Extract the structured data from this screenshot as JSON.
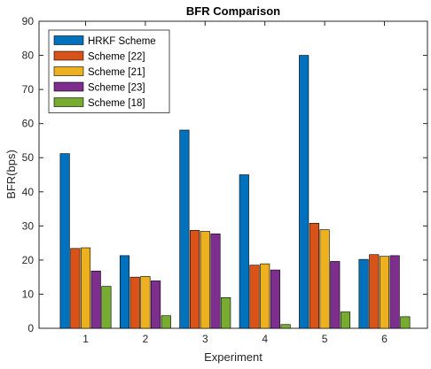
{
  "chart_data": {
    "type": "bar",
    "title": "BFR Comparison",
    "xlabel": "Experiment",
    "ylabel": "BFR(bps)",
    "categories": [
      "1",
      "2",
      "3",
      "4",
      "5",
      "6"
    ],
    "ylim": [
      0,
      90
    ],
    "yticks": [
      0,
      10,
      20,
      30,
      40,
      50,
      60,
      70,
      80,
      90
    ],
    "grid": false,
    "legend_position": "top-left",
    "series": [
      {
        "name": "HRKF Scheme",
        "color": "#0072BD",
        "values": [
          51.2,
          21.3,
          58.1,
          45.0,
          80.0,
          20.2
        ]
      },
      {
        "name": "Scheme [22]",
        "color": "#D95319",
        "values": [
          23.4,
          15.0,
          28.7,
          18.5,
          30.8,
          21.6
        ]
      },
      {
        "name": "Scheme [21]",
        "color": "#EDB120",
        "values": [
          23.6,
          15.2,
          28.4,
          18.9,
          28.9,
          21.1
        ]
      },
      {
        "name": "Scheme [23]",
        "color": "#7E2F8E",
        "values": [
          16.8,
          13.9,
          27.7,
          17.1,
          19.6,
          21.3
        ]
      },
      {
        "name": "Scheme [18]",
        "color": "#77AC30",
        "values": [
          12.3,
          3.7,
          9.0,
          1.1,
          4.8,
          3.4
        ]
      }
    ]
  }
}
